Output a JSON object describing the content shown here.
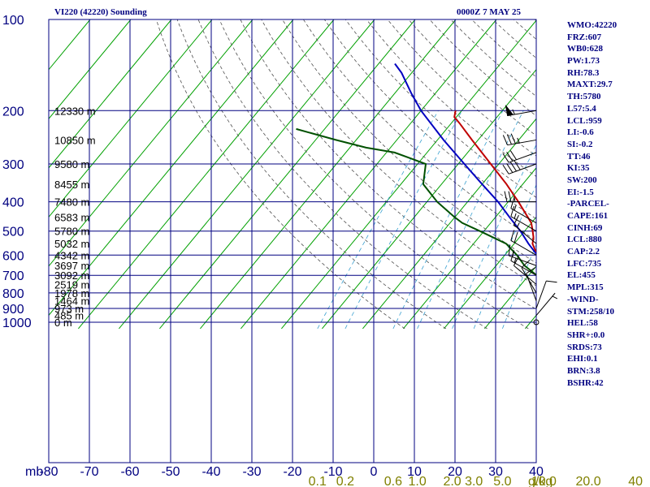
{
  "header": {
    "title_left": "VI220 (42220) Sounding",
    "title_right": "0000Z  7 MAY 25"
  },
  "indices": [
    "WMO:42220",
    "FRZ:607",
    "WB0:628",
    "PW:1.73",
    "RH:78.3",
    "MAXT:29.7",
    "TH:5780",
    "L57:5.4",
    "LCL:959",
    "LI:-0.6",
    "SI:-0.2",
    "TT:46",
    "KI:35",
    "SW:200",
    "EI:-1.5",
    "-PARCEL-",
    "CAPE:161",
    "CINH:69",
    "LCL:880",
    "CAP:2.2",
    "LFC:735",
    "EL:455",
    "MPL:315",
    "-WIND-",
    "STM:258/10",
    "HEL:58",
    "SHR+:0.0",
    "SRDS:73",
    "EHI:0.1",
    "BRN:3.8",
    "BSHR:42"
  ],
  "colors": {
    "frame": "#000080",
    "isotherm": "#00a000",
    "dry_adiabat": "#505050",
    "mixing_ratio": "#3aa0d0",
    "temperature": "#c00000",
    "parcel": "#0000c0",
    "dewpoint": "#005000",
    "mixing_label": "#808000"
  },
  "chart_data": {
    "type": "skew-t",
    "pressure_axis": {
      "label": "mb",
      "ticks": [
        100,
        200,
        300,
        400,
        500,
        600,
        700,
        800,
        900,
        1000
      ],
      "range": [
        100,
        1050
      ],
      "scale": "log"
    },
    "temperature_axis": {
      "ticks": [
        -80,
        -70,
        -60,
        -50,
        -40,
        -30,
        -20,
        -10,
        0,
        10,
        20,
        30,
        40
      ],
      "tick_labels": [
        "-80",
        "-70",
        "-60",
        "-50",
        "-40",
        "-30",
        "-20",
        "-10",
        "0",
        "10",
        "20",
        "30",
        "40"
      ]
    },
    "mixing_ratio_labels": [
      {
        "value": 0.1,
        "text": "0.1"
      },
      {
        "value": 0.2,
        "text": "0.2"
      },
      {
        "value": 0.6,
        "text": "0.6"
      },
      {
        "value": 1.0,
        "text": "1.0"
      },
      {
        "value": 2.0,
        "text": "2.0"
      },
      {
        "value": 3.0,
        "text": "3.0"
      },
      {
        "value": 5.0,
        "text": "5.0"
      },
      {
        "value": 10.0,
        "text": "10.0"
      },
      {
        "value": 20.0,
        "text": "20.0"
      },
      {
        "value": 40.0,
        "text": "40"
      }
    ],
    "mixing_ratio_unit": "g/kg",
    "height_labels": [
      {
        "p": 200,
        "text": "12330 m"
      },
      {
        "p": 250,
        "text": "10850 m"
      },
      {
        "p": 300,
        "text": "9580 m"
      },
      {
        "p": 350,
        "text": "8455 m"
      },
      {
        "p": 400,
        "text": "7480 m"
      },
      {
        "p": 450,
        "text": "6583 m"
      },
      {
        "p": 500,
        "text": "5780 m"
      },
      {
        "p": 550,
        "text": "5032 m"
      },
      {
        "p": 600,
        "text": "4342 m"
      },
      {
        "p": 650,
        "text": "3697 m"
      },
      {
        "p": 700,
        "text": "3092 m"
      },
      {
        "p": 750,
        "text": "2519 m"
      },
      {
        "p": 800,
        "text": "1978 m"
      },
      {
        "p": 850,
        "text": "1464 m"
      },
      {
        "p": 900,
        "text": "973 m"
      },
      {
        "p": 950,
        "text": "485 m"
      },
      {
        "p": 1000,
        "text": "0 m"
      }
    ],
    "series": [
      {
        "key": "temperature",
        "points": [
          [
            1000,
            28.5
          ],
          [
            975,
            25.5
          ],
          [
            950,
            23.0
          ],
          [
            925,
            21.0
          ],
          [
            900,
            18.5
          ],
          [
            850,
            15.0
          ],
          [
            800,
            12.0
          ],
          [
            750,
            8.5
          ],
          [
            700,
            5.0
          ],
          [
            650,
            1.5
          ],
          [
            600,
            -2.0
          ],
          [
            550,
            -5.5
          ],
          [
            525,
            -6.5
          ],
          [
            500,
            -8.0
          ],
          [
            470,
            -10.0
          ],
          [
            450,
            -12.0
          ],
          [
            400,
            -17.5
          ],
          [
            350,
            -24.0
          ],
          [
            300,
            -32.0
          ],
          [
            250,
            -41.5
          ],
          [
            220,
            -48.0
          ],
          [
            210,
            -50.5
          ],
          [
            200,
            -51.5
          ]
        ]
      },
      {
        "key": "dewpoint",
        "points": [
          [
            1000,
            25.0
          ],
          [
            990,
            22.5
          ],
          [
            975,
            21.5
          ],
          [
            950,
            20.0
          ],
          [
            925,
            19.5
          ],
          [
            900,
            18.0
          ],
          [
            850,
            15.0
          ],
          [
            800,
            12.0
          ],
          [
            750,
            8.0
          ],
          [
            700,
            2.0
          ],
          [
            650,
            -3.0
          ],
          [
            600,
            -7.0
          ],
          [
            550,
            -12.0
          ],
          [
            500,
            -21.0
          ],
          [
            470,
            -27.0
          ],
          [
            450,
            -30.0
          ],
          [
            400,
            -37.5
          ],
          [
            350,
            -44.5
          ],
          [
            300,
            -48.0
          ],
          [
            275,
            -58.0
          ],
          [
            265,
            -66.0
          ],
          [
            250,
            -75.0
          ],
          [
            230,
            -87.0
          ]
        ]
      },
      {
        "key": "parcel",
        "points": [
          [
            1000,
            30.0
          ],
          [
            950,
            26.5
          ],
          [
            900,
            23.0
          ],
          [
            850,
            19.5
          ],
          [
            800,
            15.8
          ],
          [
            750,
            11.3
          ],
          [
            700,
            6.7
          ],
          [
            650,
            2.2
          ],
          [
            600,
            -2.0
          ],
          [
            550,
            -6.5
          ],
          [
            500,
            -11.0
          ],
          [
            450,
            -16.5
          ],
          [
            400,
            -22.5
          ],
          [
            350,
            -30.0
          ],
          [
            300,
            -38.5
          ],
          [
            250,
            -48.5
          ],
          [
            200,
            -60.0
          ],
          [
            175,
            -66.0
          ],
          [
            150,
            -72.5
          ],
          [
            140,
            -76.0
          ]
        ]
      }
    ],
    "wind_barbs": [
      {
        "p": 200,
        "dir": 260,
        "spd": 55
      },
      {
        "p": 250,
        "dir": 260,
        "spd": 35
      },
      {
        "p": 275,
        "dir": 250,
        "spd": 30
      },
      {
        "p": 300,
        "dir": 250,
        "spd": 40
      },
      {
        "p": 400,
        "dir": 270,
        "spd": 25
      },
      {
        "p": 470,
        "dir": 300,
        "spd": 15
      },
      {
        "p": 500,
        "dir": 300,
        "spd": 15
      },
      {
        "p": 550,
        "dir": 310,
        "spd": 15
      },
      {
        "p": 600,
        "dir": 300,
        "spd": 20
      },
      {
        "p": 650,
        "dir": 290,
        "spd": 15
      },
      {
        "p": 700,
        "dir": 300,
        "spd": 15
      },
      {
        "p": 750,
        "dir": 310,
        "spd": 10
      },
      {
        "p": 800,
        "dir": 330,
        "spd": 10
      },
      {
        "p": 850,
        "dir": 340,
        "spd": 10
      },
      {
        "p": 900,
        "dir": 20,
        "spd": 10
      },
      {
        "p": 950,
        "dir": 40,
        "spd": 5
      },
      {
        "p": 1000,
        "dir": 0,
        "spd": 0
      }
    ]
  }
}
